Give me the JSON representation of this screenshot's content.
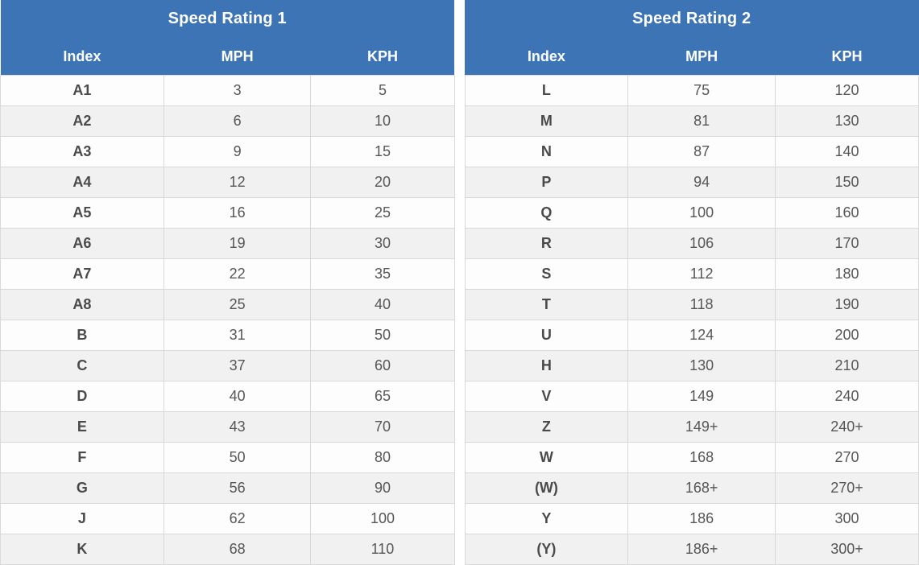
{
  "colors": {
    "header_bg": "#3d74b5",
    "header_text": "#ffffff",
    "row_bg": "#fdfdfd",
    "row_alt_bg": "#f1f1f1",
    "border": "#d9d9d9",
    "index_text": "#4a4a4a",
    "value_text": "#565656"
  },
  "chart_data": [
    {
      "type": "table",
      "title": "Speed Rating 1",
      "columns": [
        "Index",
        "MPH",
        "KPH"
      ],
      "rows": [
        [
          "A1",
          "3",
          "5"
        ],
        [
          "A2",
          "6",
          "10"
        ],
        [
          "A3",
          "9",
          "15"
        ],
        [
          "A4",
          "12",
          "20"
        ],
        [
          "A5",
          "16",
          "25"
        ],
        [
          "A6",
          "19",
          "30"
        ],
        [
          "A7",
          "22",
          "35"
        ],
        [
          "A8",
          "25",
          "40"
        ],
        [
          "B",
          "31",
          "50"
        ],
        [
          "C",
          "37",
          "60"
        ],
        [
          "D",
          "40",
          "65"
        ],
        [
          "E",
          "43",
          "70"
        ],
        [
          "F",
          "50",
          "80"
        ],
        [
          "G",
          "56",
          "90"
        ],
        [
          "J",
          "62",
          "100"
        ],
        [
          "K",
          "68",
          "110"
        ]
      ]
    },
    {
      "type": "table",
      "title": "Speed Rating 2",
      "columns": [
        "Index",
        "MPH",
        "KPH"
      ],
      "rows": [
        [
          "L",
          "75",
          "120"
        ],
        [
          "M",
          "81",
          "130"
        ],
        [
          "N",
          "87",
          "140"
        ],
        [
          "P",
          "94",
          "150"
        ],
        [
          "Q",
          "100",
          "160"
        ],
        [
          "R",
          "106",
          "170"
        ],
        [
          "S",
          "112",
          "180"
        ],
        [
          "T",
          "118",
          "190"
        ],
        [
          "U",
          "124",
          "200"
        ],
        [
          "H",
          "130",
          "210"
        ],
        [
          "V",
          "149",
          "240"
        ],
        [
          "Z",
          "149+",
          "240+"
        ],
        [
          "W",
          "168",
          "270"
        ],
        [
          "(W)",
          "168+",
          "270+"
        ],
        [
          "Y",
          "186",
          "300"
        ],
        [
          "(Y)",
          "186+",
          "300+"
        ]
      ]
    }
  ]
}
